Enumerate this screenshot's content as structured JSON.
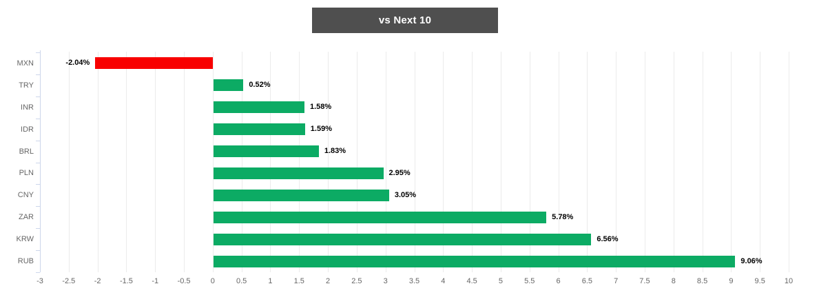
{
  "header": {
    "title": "vs Next 10",
    "background_color": "#4f4f4f",
    "text_color": "#ffffff"
  },
  "chart_data": {
    "type": "bar",
    "orientation": "horizontal",
    "title": "vs Next 10",
    "xlabel": "",
    "ylabel": "",
    "categories": [
      "MXN",
      "TRY",
      "INR",
      "IDR",
      "BRL",
      "PLN",
      "CNY",
      "ZAR",
      "KRW",
      "RUB"
    ],
    "values": [
      -2.04,
      0.52,
      1.58,
      1.59,
      1.83,
      2.95,
      3.05,
      5.78,
      6.56,
      9.06
    ],
    "value_labels": [
      "-2.04%",
      "0.52%",
      "1.58%",
      "1.59%",
      "1.83%",
      "2.95%",
      "3.05%",
      "5.78%",
      "6.56%",
      "9.06%"
    ],
    "xlim": [
      -3,
      10
    ],
    "xtick_step": 0.5,
    "xtick_labels": [
      "-3",
      "-2.5",
      "-2",
      "-1.5",
      "-1",
      "-0.5",
      "0",
      "0.5",
      "1",
      "1.5",
      "2",
      "2.5",
      "3",
      "3.5",
      "4",
      "4.5",
      "5",
      "5.5",
      "6",
      "6.5",
      "7",
      "7.5",
      "8",
      "8.5",
      "9",
      "9.5",
      "10"
    ],
    "grid": true,
    "legend": "none",
    "positive_color": "#0cab64",
    "negative_color": "#f80000",
    "gridline_color": "#ebebeb",
    "axis_line_color": "#ccd6eb",
    "axis_label_color": "#666666",
    "value_label_color": "#000000"
  }
}
